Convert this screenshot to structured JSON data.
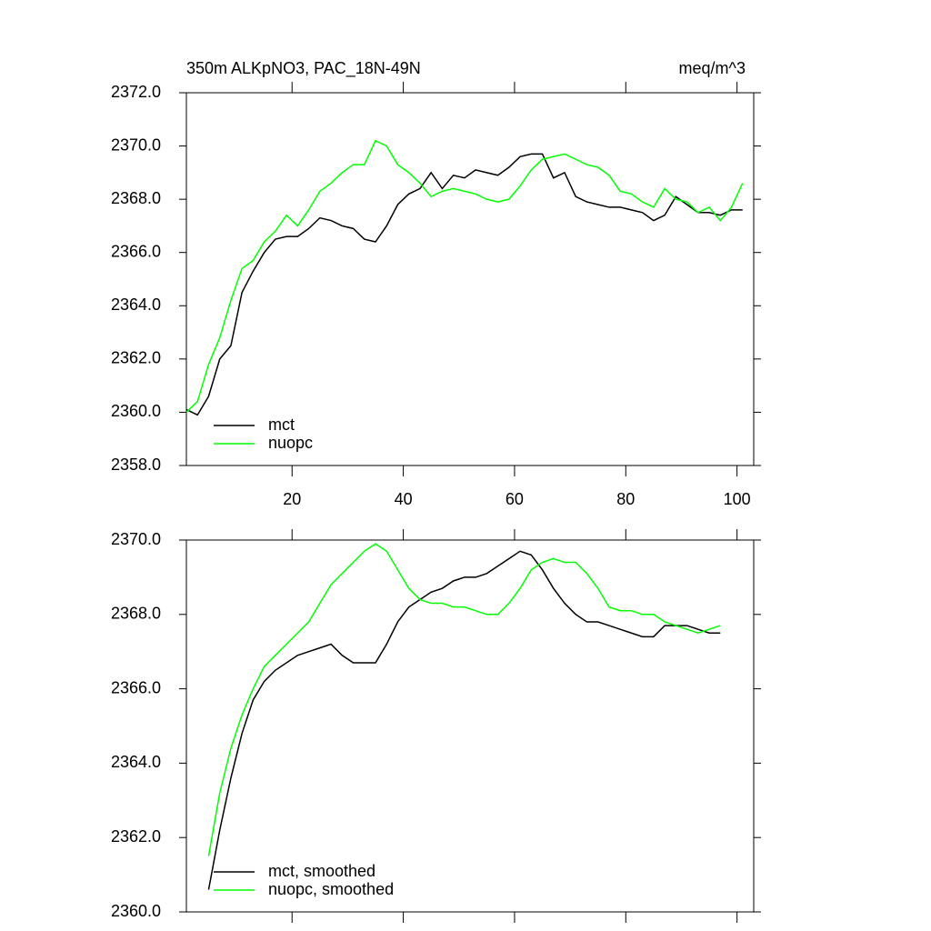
{
  "chart_data": [
    {
      "type": "line",
      "title": "350m ALKpNO3, PAC_18N-49N",
      "units": "meq/m^3",
      "x": [
        1,
        3,
        5,
        7,
        9,
        11,
        13,
        15,
        17,
        19,
        21,
        23,
        25,
        27,
        29,
        31,
        33,
        35,
        37,
        39,
        41,
        43,
        45,
        47,
        49,
        51,
        53,
        55,
        57,
        59,
        61,
        63,
        65,
        67,
        69,
        71,
        73,
        75,
        77,
        79,
        81,
        83,
        85,
        87,
        89,
        91,
        93,
        95,
        97,
        99,
        101
      ],
      "xlim": [
        1,
        103
      ],
      "xticks": [
        20,
        40,
        60,
        80,
        100
      ],
      "ylim": [
        2358,
        2372
      ],
      "yticks": [
        {
          "value": 2358,
          "label": "2358.0"
        },
        {
          "value": 2360,
          "label": "2360.0"
        },
        {
          "value": 2362,
          "label": "2362.0"
        },
        {
          "value": 2364,
          "label": "2364.0"
        },
        {
          "value": 2366,
          "label": "2366.0"
        },
        {
          "value": 2368,
          "label": "2368.0"
        },
        {
          "value": 2370,
          "label": "2370.0"
        },
        {
          "value": 2372,
          "label": "2372.0"
        }
      ],
      "legend": "lower left",
      "series": [
        {
          "name": "mct",
          "color": "#000000",
          "values": [
            2360.1,
            2359.9,
            2360.6,
            2362.0,
            2362.5,
            2364.5,
            2365.3,
            2366.0,
            2366.5,
            2366.6,
            2366.6,
            2366.9,
            2367.3,
            2367.2,
            2367.0,
            2366.9,
            2366.5,
            2366.4,
            2367.0,
            2367.8,
            2368.2,
            2368.4,
            2369.0,
            2368.4,
            2368.9,
            2368.8,
            2369.1,
            2369.0,
            2368.9,
            2369.2,
            2369.6,
            2369.7,
            2369.7,
            2368.8,
            2369.0,
            2368.1,
            2367.9,
            2367.8,
            2367.7,
            2367.7,
            2367.6,
            2367.5,
            2367.2,
            2367.4,
            2368.1,
            2367.8,
            2367.5,
            2367.5,
            2367.4,
            2367.6,
            2367.6
          ]
        },
        {
          "name": "nuopc",
          "color": "#00ff00",
          "values": [
            2360.0,
            2360.4,
            2361.8,
            2362.8,
            2364.2,
            2365.4,
            2365.7,
            2366.4,
            2366.8,
            2367.4,
            2367.0,
            2367.6,
            2368.3,
            2368.6,
            2369.0,
            2369.3,
            2369.3,
            2370.2,
            2370.0,
            2369.3,
            2369.0,
            2368.6,
            2368.1,
            2368.3,
            2368.4,
            2368.3,
            2368.2,
            2368.0,
            2367.9,
            2368.0,
            2368.5,
            2369.1,
            2369.5,
            2369.6,
            2369.7,
            2369.5,
            2369.3,
            2369.2,
            2368.9,
            2368.3,
            2368.2,
            2367.9,
            2367.7,
            2368.4,
            2368.0,
            2367.9,
            2367.5,
            2367.7,
            2367.2,
            2367.7,
            2368.6
          ]
        }
      ]
    },
    {
      "type": "line",
      "x": [
        5,
        7,
        9,
        11,
        13,
        15,
        17,
        19,
        21,
        23,
        25,
        27,
        29,
        31,
        33,
        35,
        37,
        39,
        41,
        43,
        45,
        47,
        49,
        51,
        53,
        55,
        57,
        59,
        61,
        63,
        65,
        67,
        69,
        71,
        73,
        75,
        77,
        79,
        81,
        83,
        85,
        87,
        89,
        91,
        93,
        95,
        97
      ],
      "xlim": [
        1,
        103
      ],
      "ylim": [
        2360,
        2370
      ],
      "yticks": [
        {
          "value": 2360,
          "label": "2360.0"
        },
        {
          "value": 2362,
          "label": "2362.0"
        },
        {
          "value": 2364,
          "label": "2364.0"
        },
        {
          "value": 2366,
          "label": "2366.0"
        },
        {
          "value": 2368,
          "label": "2368.0"
        },
        {
          "value": 2370,
          "label": "2370.0"
        }
      ],
      "legend": "lower left",
      "series": [
        {
          "name": "mct, smoothed",
          "color": "#000000",
          "values": [
            2360.6,
            2362.2,
            2363.6,
            2364.8,
            2365.7,
            2366.2,
            2366.5,
            2366.7,
            2366.9,
            2367.0,
            2367.1,
            2367.2,
            2366.9,
            2366.7,
            2366.7,
            2366.7,
            2367.2,
            2367.8,
            2368.2,
            2368.4,
            2368.6,
            2368.7,
            2368.9,
            2369.0,
            2369.0,
            2369.1,
            2369.3,
            2369.5,
            2369.7,
            2369.6,
            2369.2,
            2368.7,
            2368.3,
            2368.0,
            2367.8,
            2367.8,
            2367.7,
            2367.6,
            2367.5,
            2367.4,
            2367.4,
            2367.7,
            2367.7,
            2367.7,
            2367.6,
            2367.5,
            2367.5
          ]
        },
        {
          "name": "nuopc, smoothed",
          "color": "#00ff00",
          "values": [
            2361.5,
            2363.2,
            2364.4,
            2365.3,
            2366.0,
            2366.6,
            2366.9,
            2367.2,
            2367.5,
            2367.8,
            2368.3,
            2368.8,
            2369.1,
            2369.4,
            2369.7,
            2369.9,
            2369.7,
            2369.2,
            2368.7,
            2368.4,
            2368.3,
            2368.3,
            2368.2,
            2368.2,
            2368.1,
            2368.0,
            2368.0,
            2368.3,
            2368.7,
            2369.2,
            2369.4,
            2369.5,
            2369.4,
            2369.4,
            2369.1,
            2368.7,
            2368.2,
            2368.1,
            2368.1,
            2368.0,
            2368.0,
            2367.8,
            2367.7,
            2367.6,
            2367.5,
            2367.6,
            2367.7
          ]
        }
      ]
    }
  ]
}
